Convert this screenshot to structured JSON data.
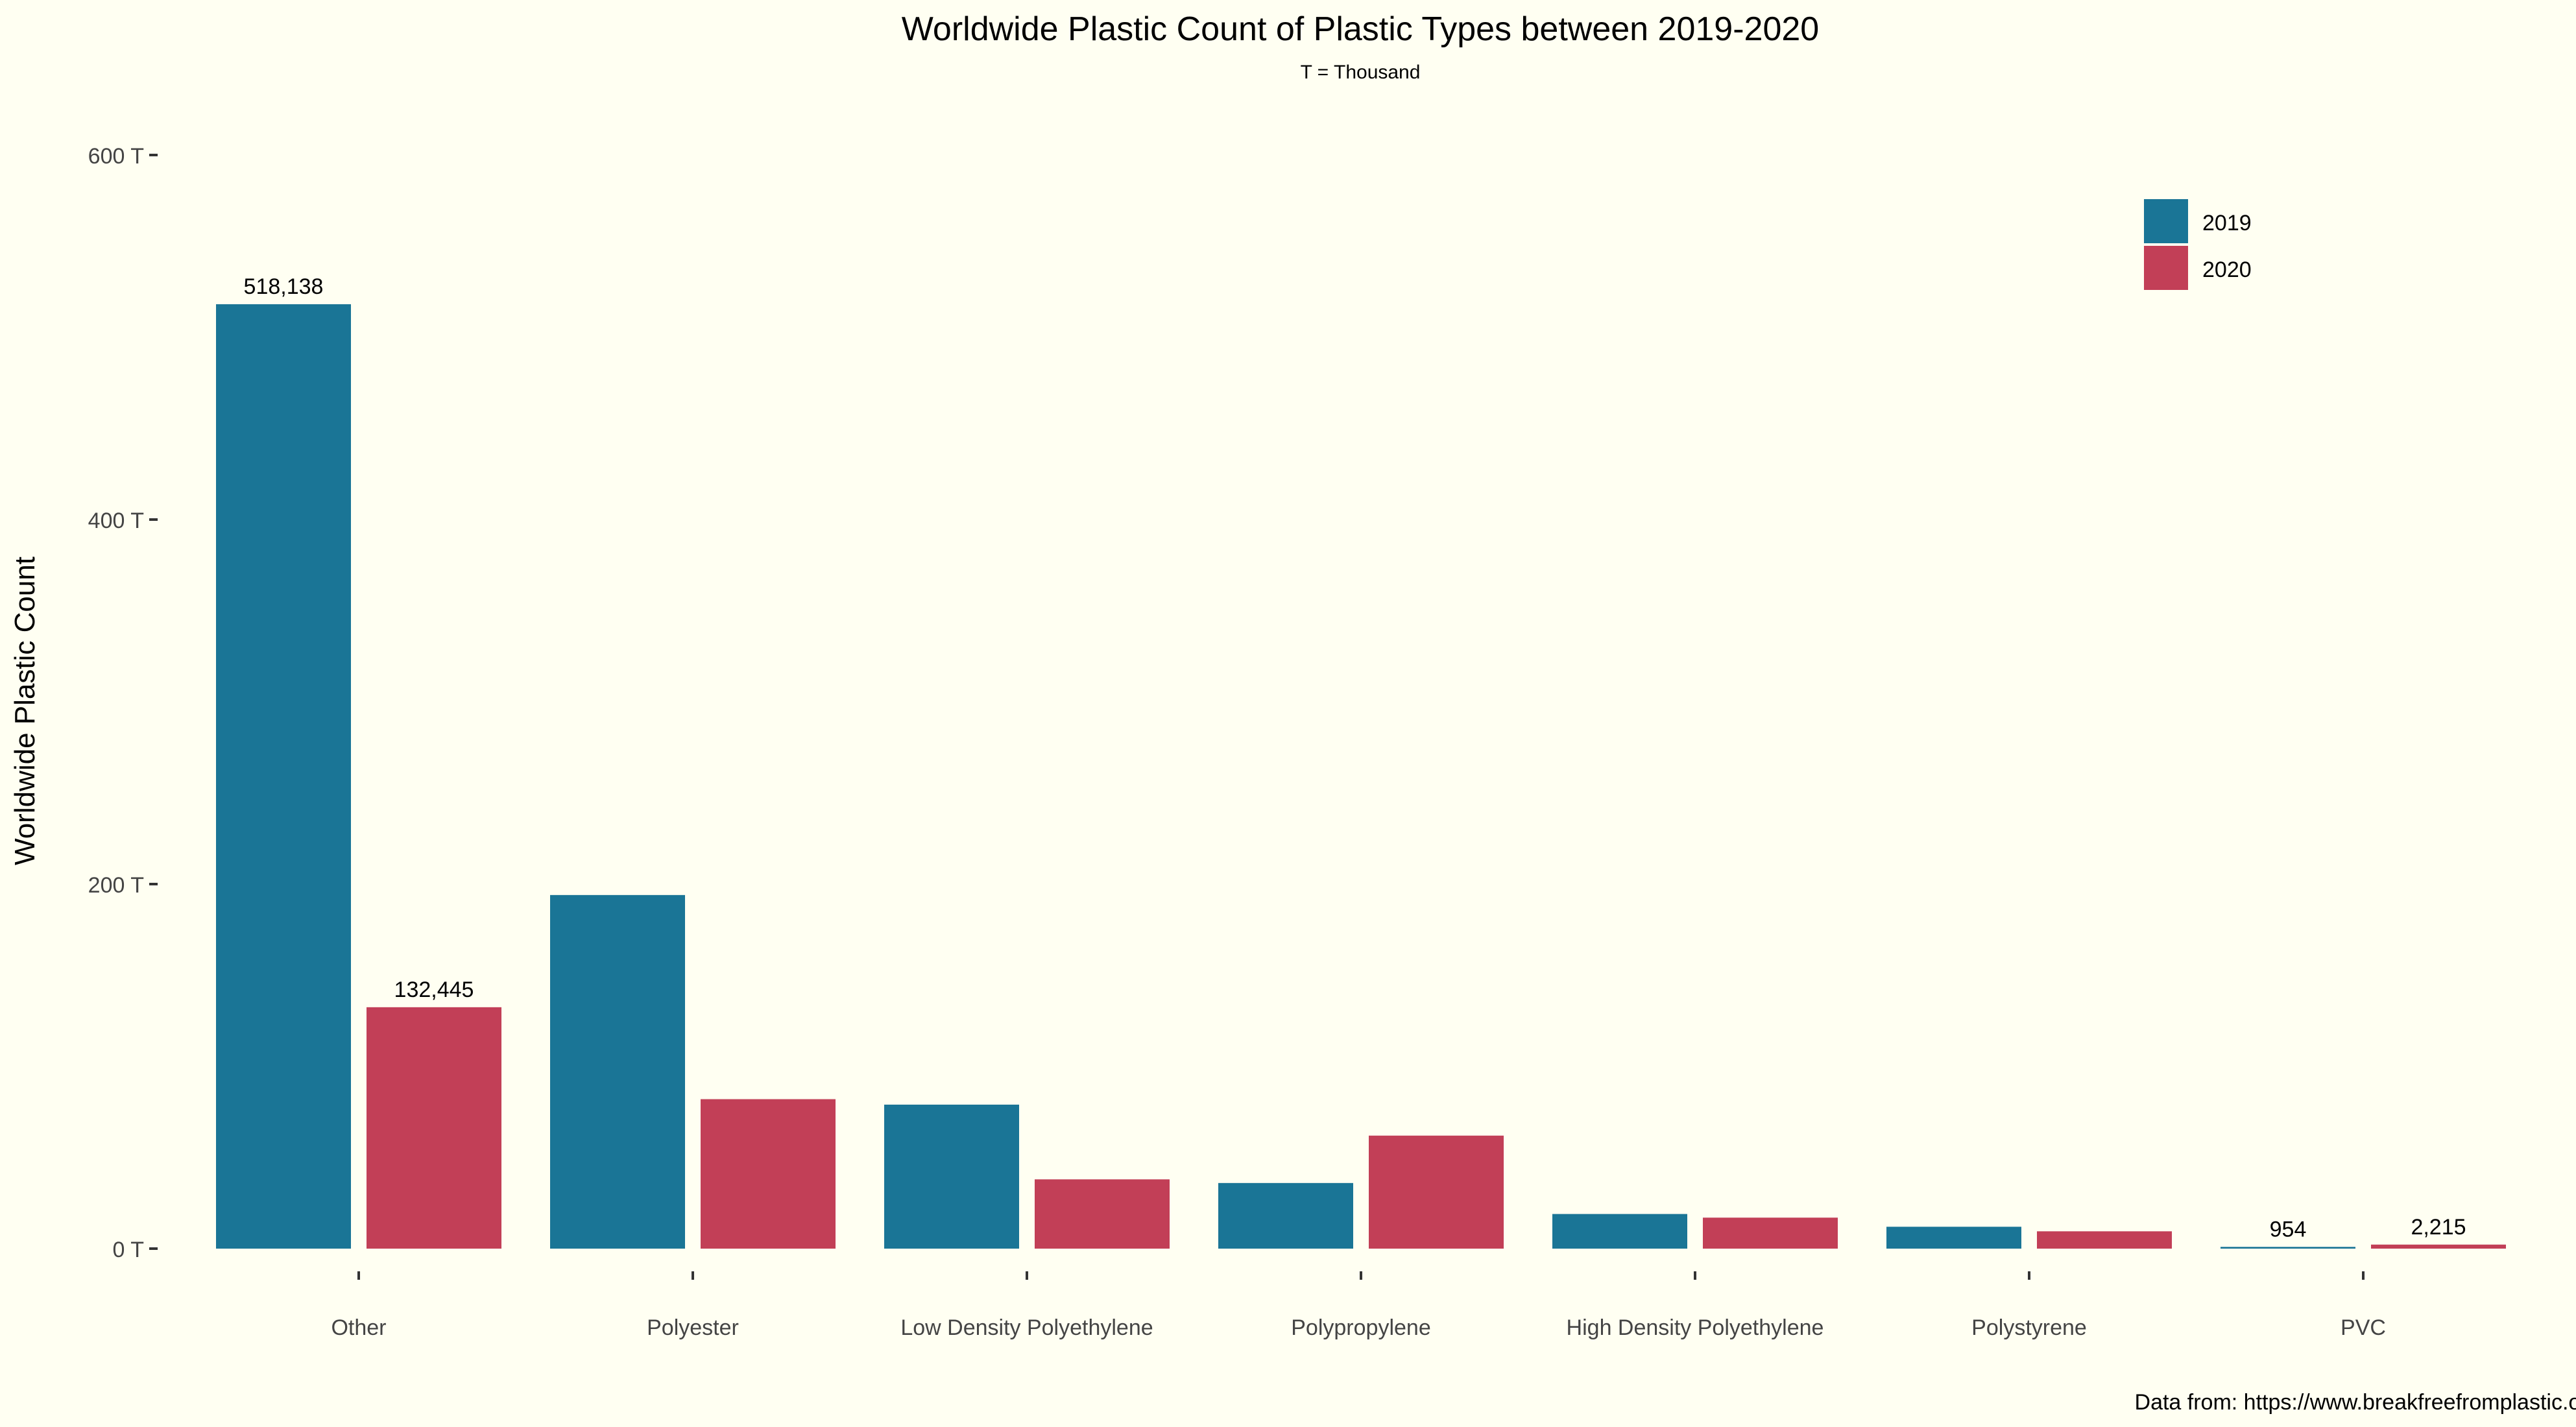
{
  "chart_data": {
    "type": "bar",
    "title": "Worldwide Plastic Count of Plastic Types between 2019-2020",
    "subtitle": "T = Thousand",
    "ylabel": "Worldwide Plastic Count",
    "xlabel": "",
    "caption": "Data from: https://www.breakfreefromplastic.org/",
    "categories": [
      "Other",
      "Polyester",
      "Low Density Polyethylene",
      "Polypropylene",
      "High Density Polyethylene",
      "Polystyrene",
      "PVC"
    ],
    "series": [
      {
        "name": "2019",
        "color": "#1A7596",
        "values": [
          518138,
          194000,
          79000,
          36000,
          19000,
          12000,
          954
        ]
      },
      {
        "name": "2020",
        "color": "#C23F57",
        "values": [
          132445,
          82000,
          38000,
          62000,
          17000,
          9500,
          2215
        ]
      }
    ],
    "data_labels": [
      {
        "series": 0,
        "index": 0,
        "text": "518,138"
      },
      {
        "series": 1,
        "index": 0,
        "text": "132,445"
      },
      {
        "series": 0,
        "index": 6,
        "text": "954"
      },
      {
        "series": 1,
        "index": 6,
        "text": "2,215"
      }
    ],
    "yticks": [
      {
        "value": 0,
        "label": "0 T"
      },
      {
        "value": 200000,
        "label": "200 T"
      },
      {
        "value": 400000,
        "label": "400 T"
      },
      {
        "value": 600000,
        "label": "600 T"
      }
    ],
    "ylim": [
      0,
      600000
    ],
    "grid": false,
    "legend_position": "top-right",
    "background": "#FFFFF2"
  }
}
